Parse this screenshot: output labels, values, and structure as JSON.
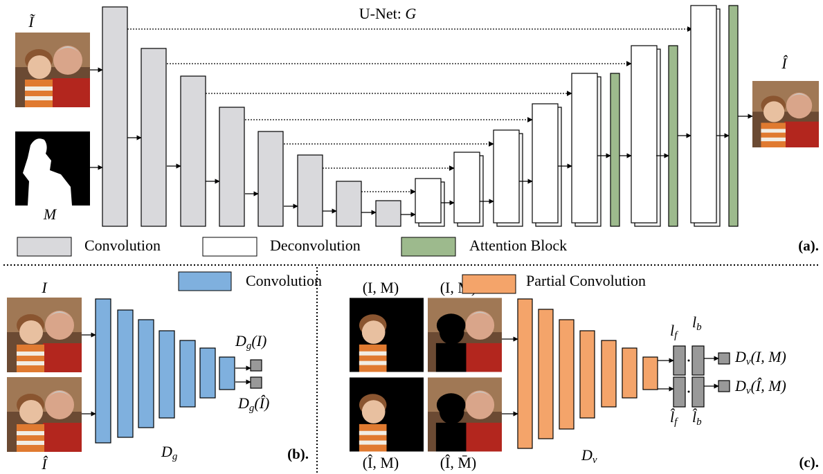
{
  "panel_a": {
    "input_label": "Ĩ",
    "mask_label": "M",
    "title_prefix": "U-Net: ",
    "title_var": "G",
    "output_label": "Î",
    "legend": [
      "Convolution",
      "Deconvolution",
      "Attention Block"
    ],
    "tag": "(a)."
  },
  "panel_b": {
    "input_real": "I",
    "input_fake": "Î",
    "legend": "Convolution",
    "out_real": {
      "base": "D",
      "sub": "g",
      "arg": "(I)"
    },
    "out_fake": {
      "base": "D",
      "sub": "g",
      "arg": "(Î)"
    },
    "net": {
      "base": "D",
      "sub": "g"
    },
    "tag": "(b)."
  },
  "panel_c": {
    "pairs": [
      "(I, M)",
      "(I, M̄)",
      "(Î, M)",
      "(Î, M̄)"
    ],
    "legend": "Partial Convolution",
    "net": {
      "base": "D",
      "sub": "v"
    },
    "features": [
      {
        "base": "l",
        "sub": "f"
      },
      {
        "base": "l",
        "sub": "b"
      },
      {
        "base": "l̂",
        "sub": "f"
      },
      {
        "base": "l̂",
        "sub": "b"
      }
    ],
    "out_real": {
      "base": "D",
      "sub": "v",
      "arg": "(I, M)"
    },
    "out_fake": {
      "base": "D",
      "sub": "v",
      "arg": "(Î, M)"
    },
    "tag": "(c)."
  }
}
